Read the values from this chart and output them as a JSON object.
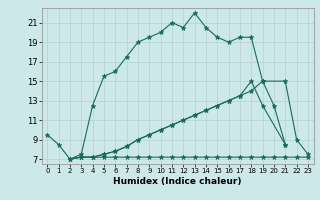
{
  "xlabel": "Humidex (Indice chaleur)",
  "background_color": "#cce8e8",
  "grid_color": "#b8d4d4",
  "line_color": "#1a6b5a",
  "xlim": [
    -0.5,
    23.5
  ],
  "ylim": [
    6.5,
    22.5
  ],
  "xticks": [
    0,
    1,
    2,
    3,
    4,
    5,
    6,
    7,
    8,
    9,
    10,
    11,
    12,
    13,
    14,
    15,
    16,
    17,
    18,
    19,
    20,
    21,
    22,
    23
  ],
  "yticks": [
    7,
    9,
    11,
    13,
    15,
    17,
    19,
    21
  ],
  "series1_x": [
    0,
    1,
    2,
    3,
    4,
    5,
    6,
    7,
    8,
    9,
    10,
    11,
    12,
    13,
    14,
    15,
    16,
    17,
    18,
    19,
    20,
    21
  ],
  "series1_y": [
    9.5,
    8.5,
    7.0,
    7.5,
    12.5,
    15.5,
    16.0,
    17.5,
    19.0,
    19.5,
    20.0,
    21.0,
    20.5,
    22.0,
    20.5,
    19.5,
    19.0,
    19.5,
    19.5,
    15.0,
    12.5,
    8.5
  ],
  "series2_x": [
    2,
    3,
    4,
    5,
    6,
    7,
    8,
    9,
    10,
    11,
    12,
    13,
    14,
    15,
    16,
    17,
    18,
    19,
    20,
    21,
    22,
    23
  ],
  "series2_y": [
    7.0,
    7.2,
    7.2,
    7.2,
    7.2,
    7.2,
    7.2,
    7.2,
    7.2,
    7.2,
    7.2,
    7.2,
    7.2,
    7.2,
    7.2,
    7.2,
    7.2,
    7.2,
    7.2,
    7.2,
    7.2,
    7.2
  ],
  "series3_x": [
    2,
    3,
    4,
    5,
    6,
    7,
    8,
    9,
    10,
    11,
    12,
    13,
    14,
    15,
    16,
    17,
    18,
    19,
    21,
    22,
    23
  ],
  "series3_y": [
    7.0,
    7.2,
    7.2,
    7.5,
    7.8,
    8.3,
    9.0,
    9.5,
    10.0,
    10.5,
    11.0,
    11.5,
    12.0,
    12.5,
    13.0,
    13.5,
    15.0,
    12.5,
    8.5,
    null,
    null
  ],
  "series4_x": [
    2,
    3,
    4,
    5,
    6,
    7,
    8,
    9,
    10,
    11,
    12,
    13,
    14,
    15,
    16,
    17,
    18,
    19,
    21,
    22,
    23
  ],
  "series4_y": [
    7.0,
    7.2,
    7.2,
    7.5,
    7.8,
    8.3,
    9.0,
    9.5,
    10.0,
    10.5,
    11.0,
    11.5,
    12.0,
    12.5,
    13.0,
    13.5,
    14.0,
    15.0,
    15.0,
    9.0,
    7.5
  ]
}
